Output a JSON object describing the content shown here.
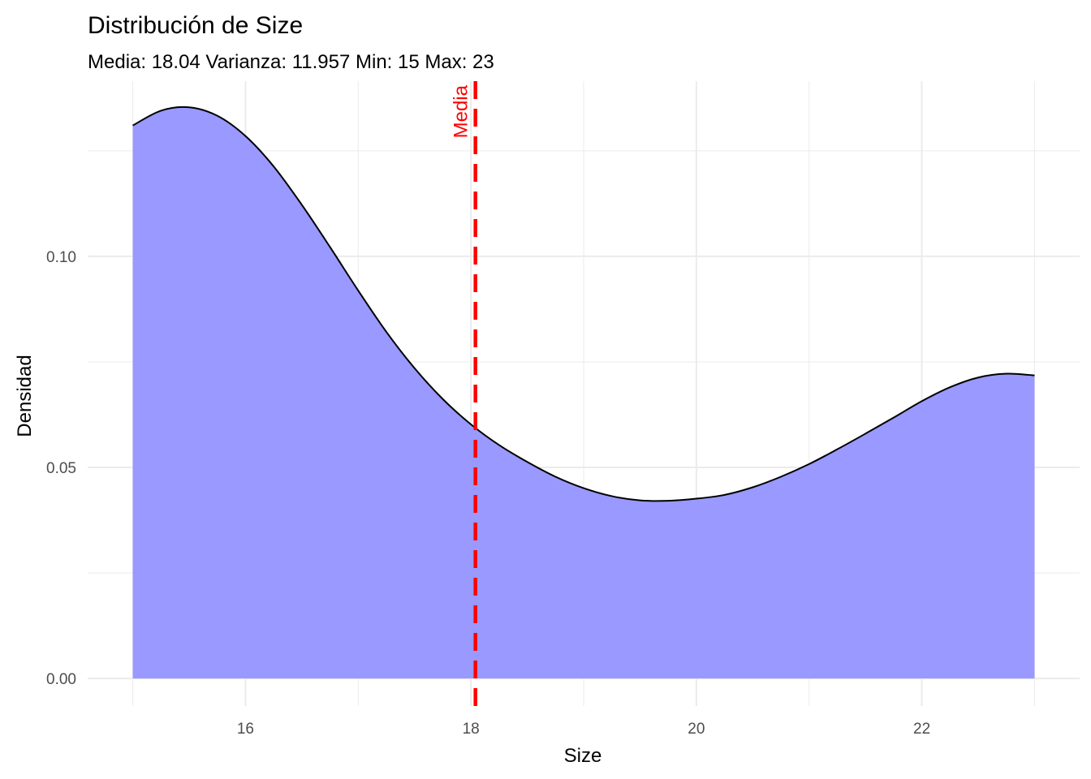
{
  "chart_data": {
    "type": "area",
    "title": "Distribución de Size",
    "subtitle": "Media: 18.04 Varianza: 11.957 Min: 15 Max: 23",
    "xlabel": "Size",
    "ylabel": "Densidad",
    "xlim": [
      14.6,
      23.4
    ],
    "ylim": [
      -0.0065,
      0.1415
    ],
    "x_ticks": [
      16,
      18,
      20,
      22
    ],
    "x_tick_labels": [
      "16",
      "18",
      "20",
      "22"
    ],
    "y_ticks": [
      0.0,
      0.05,
      0.1
    ],
    "y_tick_labels": [
      "0.00",
      "0.05",
      "0.10"
    ],
    "grid": true,
    "series": [
      {
        "x": [
          15.0,
          15.25,
          15.5,
          15.75,
          16.0,
          16.25,
          16.5,
          16.75,
          17.0,
          17.25,
          17.5,
          17.75,
          18.0,
          18.25,
          18.5,
          18.75,
          19.0,
          19.25,
          19.5,
          19.75,
          20.0,
          20.25,
          20.5,
          20.75,
          21.0,
          21.25,
          21.5,
          21.75,
          22.0,
          22.25,
          22.5,
          22.75,
          23.0
        ],
        "y": [
          0.131,
          0.1345,
          0.1353,
          0.1333,
          0.1285,
          0.1213,
          0.1122,
          0.1022,
          0.0919,
          0.0821,
          0.0735,
          0.0662,
          0.0602,
          0.0553,
          0.0513,
          0.0478,
          0.0451,
          0.0432,
          0.0422,
          0.0421,
          0.0426,
          0.0435,
          0.0453,
          0.0478,
          0.0508,
          0.0543,
          0.058,
          0.0618,
          0.0657,
          0.069,
          0.0713,
          0.0722,
          0.0718
        ]
      }
    ],
    "fill_color": "#9999ff",
    "line_color": "#000000",
    "mean_line": {
      "x": 18.04,
      "label": "Media",
      "color": "#ff0000",
      "style": "dashed"
    }
  }
}
